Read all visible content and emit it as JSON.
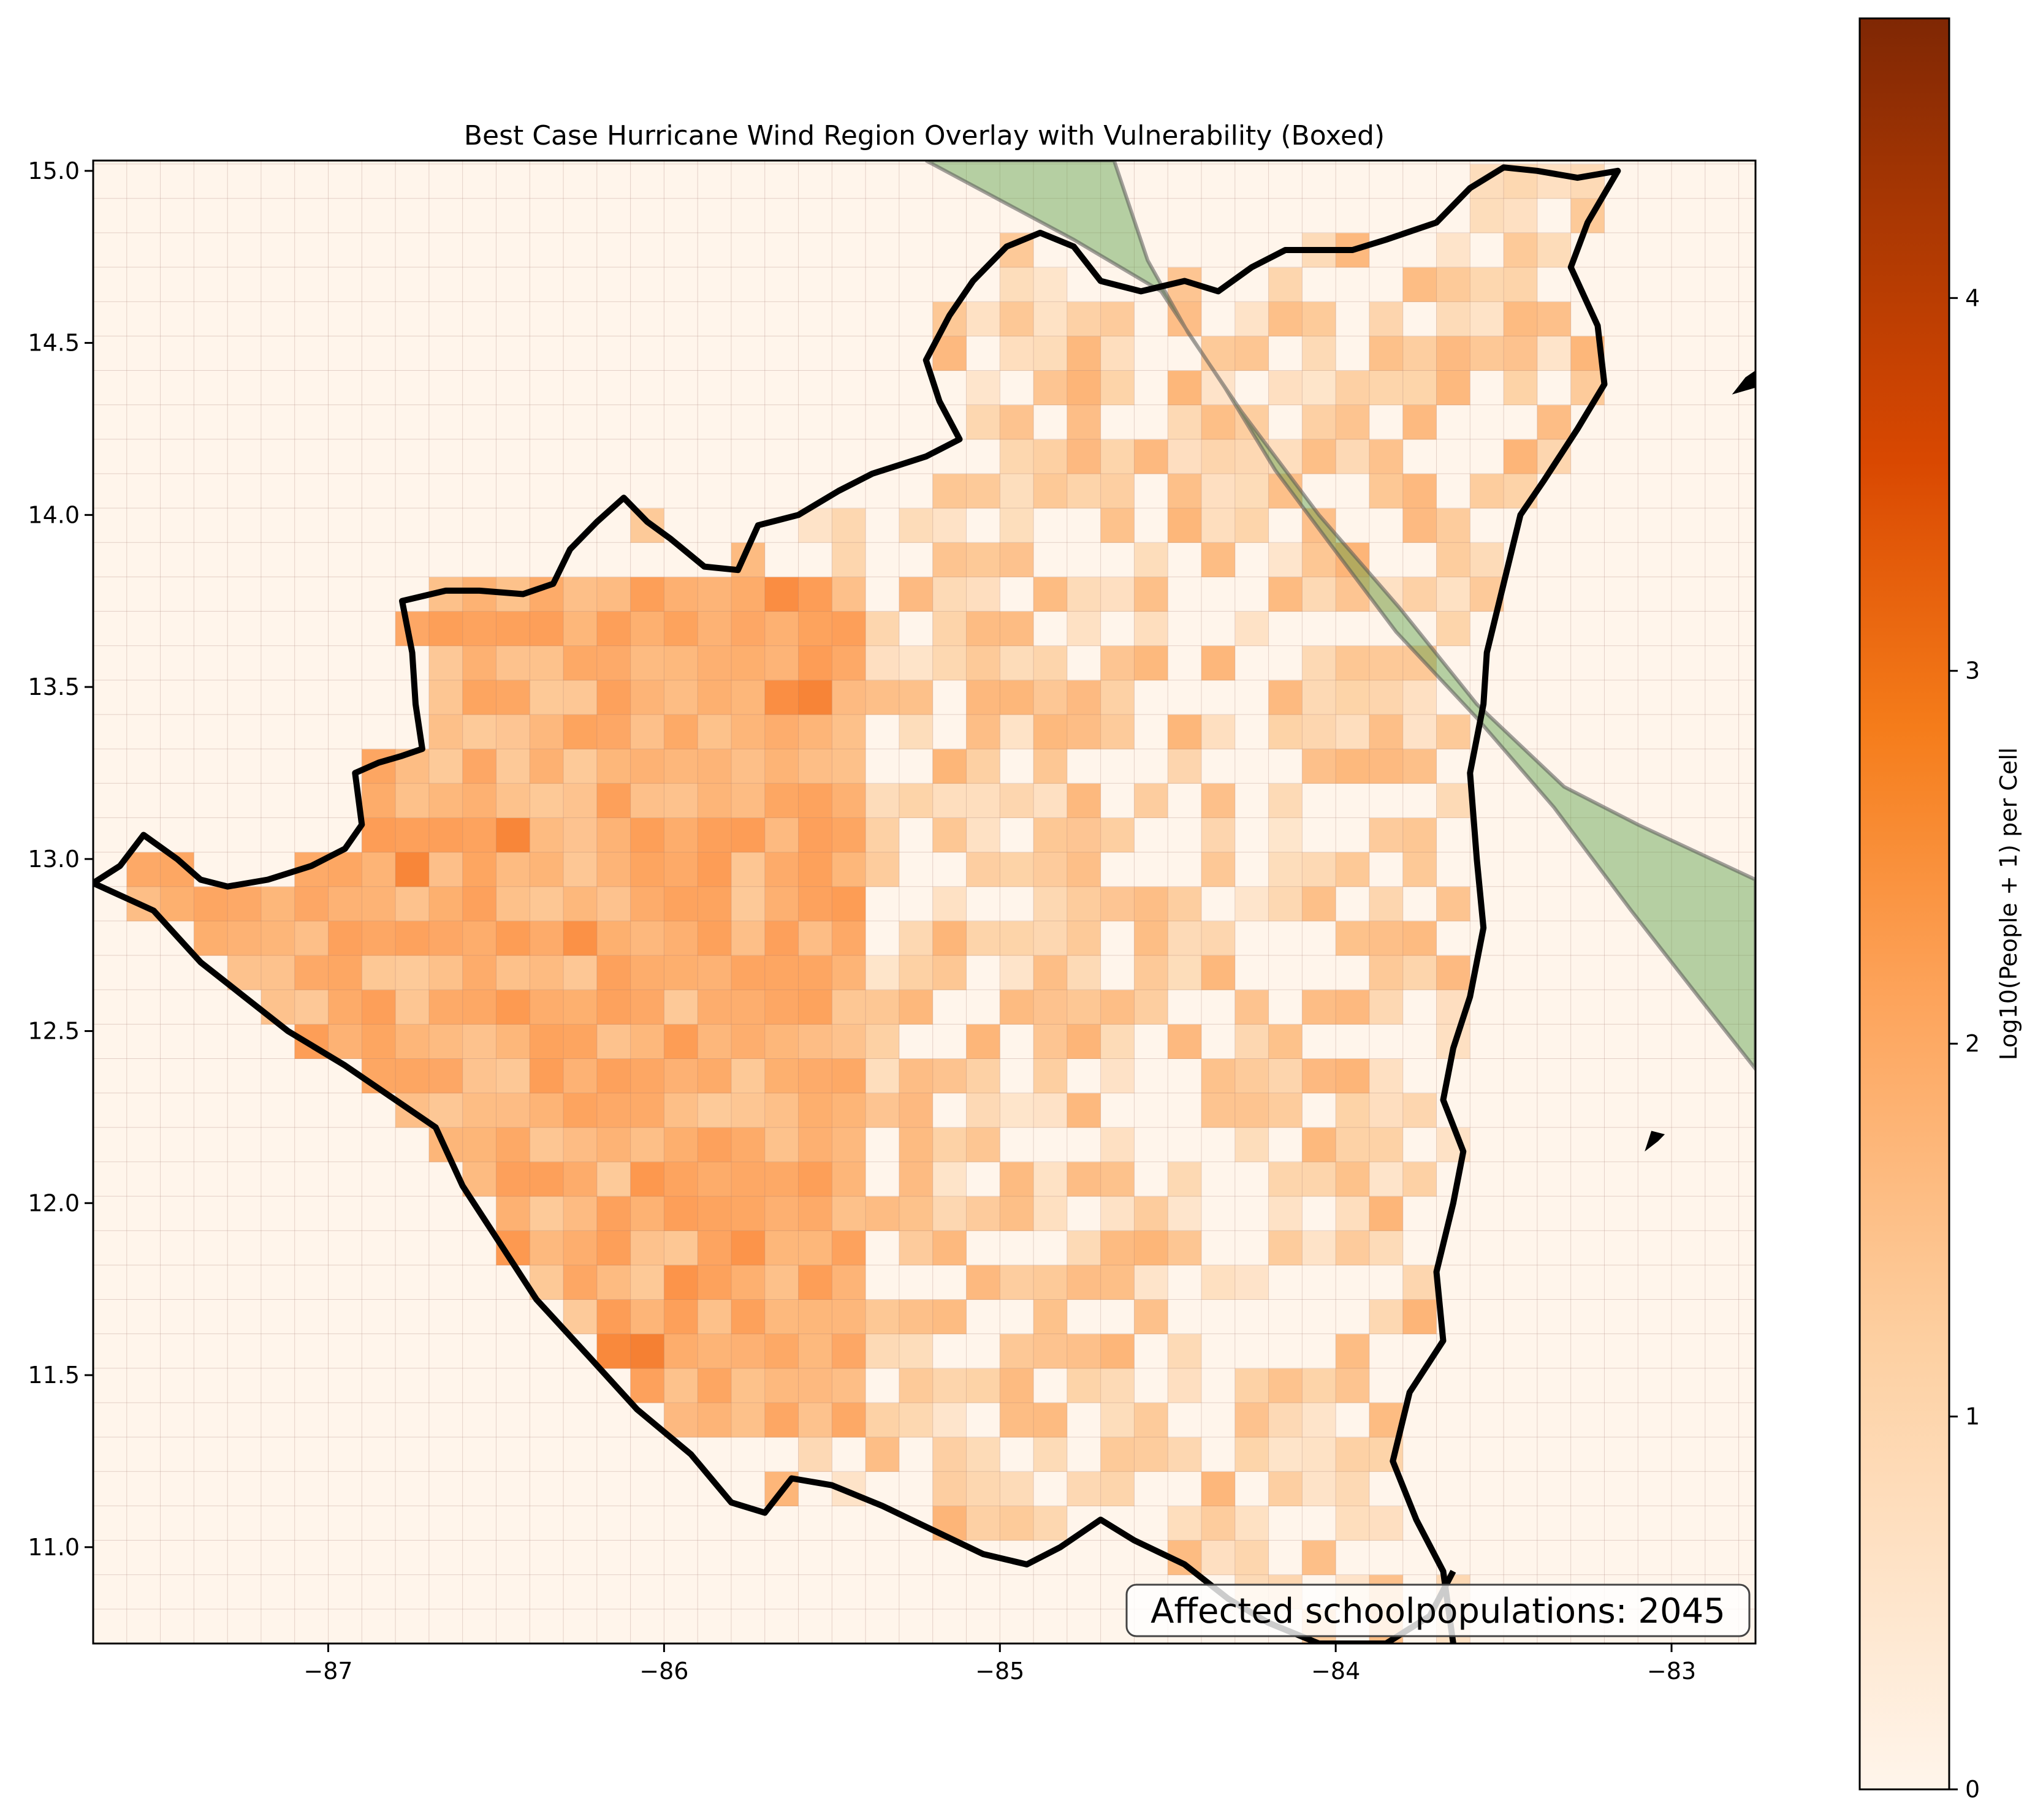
{
  "chart_data": {
    "type": "heatmap",
    "title": "Best Case Hurricane Wind Region Overlay with Vulnerability (Boxed)",
    "xlabel": "",
    "ylabel": "",
    "xlim": [
      -87.7,
      -82.75
    ],
    "ylim": [
      10.72,
      15.03
    ],
    "x_ticks": [
      -87,
      -86,
      -85,
      -84,
      -83
    ],
    "x_tick_labels": [
      "−87",
      "−86",
      "−85",
      "−84",
      "−83"
    ],
    "y_ticks": [
      11.0,
      11.5,
      12.0,
      12.5,
      13.0,
      13.5,
      14.0,
      14.5,
      15.0
    ],
    "y_tick_labels": [
      "11.0",
      "11.5",
      "12.0",
      "12.5",
      "13.0",
      "13.5",
      "14.0",
      "14.5",
      "15.0"
    ],
    "grid": true,
    "cell_size_deg": 0.1,
    "colorbar": {
      "label": "Log10(People + 1) per Cell",
      "range": [
        0,
        4.75
      ],
      "ticks": [
        0,
        1,
        2,
        3,
        4
      ],
      "tick_labels": [
        "0",
        "1",
        "2",
        "3",
        "4"
      ],
      "colormap": "Oranges"
    },
    "annotation": "Affected schoolpopulations: 2045",
    "wind_region_color": "#4e9a3e",
    "coastline_color": "#000000",
    "wind_region_polygon": [
      [
        -85.22,
        15.03
      ],
      [
        -84.66,
        15.03
      ],
      [
        -84.56,
        14.74
      ],
      [
        -84.44,
        14.53
      ],
      [
        -84.28,
        14.3
      ],
      [
        -84.05,
        14.0
      ],
      [
        -83.81,
        13.73
      ],
      [
        -83.58,
        13.45
      ],
      [
        -83.32,
        13.21
      ],
      [
        -83.1,
        13.1
      ],
      [
        -82.75,
        12.94
      ],
      [
        -82.75,
        12.39
      ],
      [
        -82.92,
        12.6
      ],
      [
        -83.12,
        12.85
      ],
      [
        -83.35,
        13.15
      ],
      [
        -83.58,
        13.41
      ],
      [
        -83.82,
        13.66
      ],
      [
        -84.02,
        13.92
      ],
      [
        -84.18,
        14.13
      ],
      [
        -84.33,
        14.37
      ],
      [
        -84.52,
        14.65
      ],
      [
        -84.78,
        14.8
      ],
      [
        -85.22,
        15.03
      ]
    ],
    "coastline": [
      [
        -87.7,
        12.93
      ],
      [
        -87.62,
        12.98
      ],
      [
        -87.55,
        13.07
      ],
      [
        -87.45,
        13.0
      ],
      [
        -87.38,
        12.94
      ],
      [
        -87.3,
        12.92
      ],
      [
        -87.18,
        12.94
      ],
      [
        -87.05,
        12.98
      ],
      [
        -86.95,
        13.03
      ],
      [
        -86.9,
        13.1
      ],
      [
        -86.92,
        13.25
      ],
      [
        -86.85,
        13.28
      ],
      [
        -86.78,
        13.3
      ],
      [
        -86.72,
        13.32
      ],
      [
        -86.74,
        13.45
      ],
      [
        -86.75,
        13.6
      ],
      [
        -86.78,
        13.75
      ],
      [
        -86.65,
        13.78
      ],
      [
        -86.55,
        13.78
      ],
      [
        -86.42,
        13.77
      ],
      [
        -86.33,
        13.8
      ],
      [
        -86.28,
        13.9
      ],
      [
        -86.2,
        13.98
      ],
      [
        -86.12,
        14.05
      ],
      [
        -86.05,
        13.98
      ],
      [
        -85.98,
        13.93
      ],
      [
        -85.88,
        13.85
      ],
      [
        -85.78,
        13.84
      ],
      [
        -85.72,
        13.97
      ],
      [
        -85.6,
        14.0
      ],
      [
        -85.48,
        14.07
      ],
      [
        -85.38,
        14.12
      ],
      [
        -85.22,
        14.17
      ],
      [
        -85.12,
        14.22
      ],
      [
        -85.18,
        14.33
      ],
      [
        -85.22,
        14.45
      ],
      [
        -85.15,
        14.58
      ],
      [
        -85.08,
        14.68
      ],
      [
        -84.98,
        14.78
      ],
      [
        -84.88,
        14.82
      ],
      [
        -84.78,
        14.78
      ],
      [
        -84.7,
        14.68
      ],
      [
        -84.58,
        14.65
      ],
      [
        -84.45,
        14.68
      ],
      [
        -84.35,
        14.65
      ],
      [
        -84.25,
        14.72
      ],
      [
        -84.15,
        14.77
      ],
      [
        -84.05,
        14.77
      ],
      [
        -83.95,
        14.77
      ],
      [
        -83.85,
        14.8
      ],
      [
        -83.7,
        14.85
      ],
      [
        -83.6,
        14.95
      ],
      [
        -83.5,
        15.01
      ],
      [
        -83.4,
        15.0
      ],
      [
        -83.28,
        14.98
      ],
      [
        -83.16,
        15.0
      ],
      [
        -83.25,
        14.85
      ],
      [
        -83.3,
        14.72
      ],
      [
        -83.22,
        14.55
      ],
      [
        -83.2,
        14.38
      ],
      [
        -83.28,
        14.25
      ],
      [
        -83.38,
        14.1
      ],
      [
        -83.45,
        14.0
      ],
      [
        -83.5,
        13.8
      ],
      [
        -83.55,
        13.6
      ],
      [
        -83.56,
        13.45
      ],
      [
        -83.6,
        13.25
      ],
      [
        -83.58,
        13.0
      ],
      [
        -83.56,
        12.8
      ],
      [
        -83.6,
        12.6
      ],
      [
        -83.65,
        12.45
      ],
      [
        -83.68,
        12.3
      ],
      [
        -83.62,
        12.15
      ],
      [
        -83.65,
        12.0
      ],
      [
        -83.7,
        11.8
      ],
      [
        -83.68,
        11.6
      ],
      [
        -83.78,
        11.45
      ],
      [
        -83.83,
        11.25
      ],
      [
        -83.76,
        11.08
      ],
      [
        -83.68,
        10.93
      ],
      [
        -83.65,
        10.72
      ]
    ],
    "southern_border": [
      [
        -87.7,
        12.93
      ],
      [
        -87.52,
        12.85
      ],
      [
        -87.38,
        12.7
      ],
      [
        -87.25,
        12.6
      ],
      [
        -87.12,
        12.5
      ],
      [
        -86.95,
        12.4
      ],
      [
        -86.8,
        12.3
      ],
      [
        -86.68,
        12.22
      ],
      [
        -86.6,
        12.05
      ],
      [
        -86.5,
        11.9
      ],
      [
        -86.38,
        11.72
      ],
      [
        -86.22,
        11.55
      ],
      [
        -86.08,
        11.4
      ],
      [
        -85.92,
        11.27
      ],
      [
        -85.8,
        11.13
      ],
      [
        -85.7,
        11.1
      ],
      [
        -85.62,
        11.2
      ],
      [
        -85.5,
        11.18
      ],
      [
        -85.35,
        11.12
      ],
      [
        -85.2,
        11.05
      ],
      [
        -85.05,
        10.98
      ],
      [
        -84.92,
        10.95
      ],
      [
        -84.82,
        11.0
      ],
      [
        -84.7,
        11.08
      ],
      [
        -84.6,
        11.02
      ],
      [
        -84.45,
        10.95
      ],
      [
        -84.32,
        10.85
      ],
      [
        -84.2,
        10.78
      ],
      [
        -84.05,
        10.72
      ],
      [
        -83.85,
        10.72
      ],
      [
        -83.72,
        10.8
      ],
      [
        -83.65,
        10.93
      ]
    ],
    "island": [
      [
        -83.08,
        12.15
      ],
      [
        -83.04,
        12.18
      ],
      [
        -83.02,
        12.2
      ],
      [
        -83.06,
        12.21
      ],
      [
        -83.08,
        12.15
      ]
    ],
    "honduras_island": [
      [
        -82.82,
        14.35
      ],
      [
        -82.78,
        14.4
      ],
      [
        -82.75,
        14.42
      ],
      [
        -82.75,
        14.37
      ],
      [
        -82.82,
        14.35
      ]
    ]
  }
}
